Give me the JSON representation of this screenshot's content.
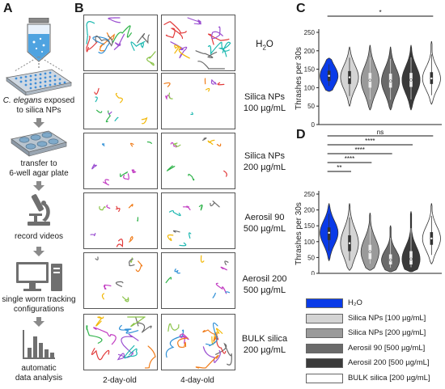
{
  "panels": {
    "a": "A",
    "b": "B",
    "c": "C",
    "d": "D"
  },
  "workflow": {
    "step1_italic": "C. elegans",
    "step1_rest": " exposed\nto silica NPs",
    "step2": "transfer to\n6-well agar plate",
    "step3": "record videos",
    "step4": "single worm tracking\nconfigurations",
    "step5": "automatic\ndata analysis"
  },
  "grid": {
    "col_labels": [
      "2-day-old",
      "4-day-old"
    ],
    "conditions": [
      {
        "line1": "H",
        "sub": "2",
        "line1b": "O",
        "line2": ""
      },
      {
        "line1": "Silica NPs",
        "line2": "100 µg/mL"
      },
      {
        "line1": "Silica NPs",
        "line2": "200 µg/mL"
      },
      {
        "line1": "Aerosil 90",
        "line2": "500 µg/mL"
      },
      {
        "line1": "Aerosil 200",
        "line2": "500 µg/mL"
      },
      {
        "line1": "BULK silica",
        "line2": "200 µg/mL"
      }
    ]
  },
  "chart_data": [
    {
      "type": "violin",
      "panel": "C",
      "ylabel": "Thrashes per 30s",
      "ylim": [
        0,
        250
      ],
      "yticks": [
        0,
        50,
        100,
        150,
        200,
        250
      ],
      "categories": [
        "H2O",
        "Silica NPs [100 µg/mL]",
        "Silica NPs [200 µg/mL]",
        "Aerosil 90 [500 µg/mL]",
        "Aerosil 200 [500 µg/mL]",
        "BULK silica [200 µg/mL]"
      ],
      "medians": [
        132,
        128,
        120,
        118,
        121,
        125
      ],
      "q1": [
        118,
        110,
        100,
        100,
        102,
        110
      ],
      "q3": [
        146,
        145,
        140,
        138,
        140,
        142
      ],
      "min": [
        90,
        50,
        40,
        40,
        40,
        55
      ],
      "max": [
        180,
        210,
        215,
        210,
        215,
        225
      ],
      "significance": [
        {
          "from": 0,
          "to": 5,
          "label": "*"
        }
      ]
    },
    {
      "type": "violin",
      "panel": "D",
      "ylabel": "Thrashes per 30s",
      "ylim": [
        0,
        250
      ],
      "yticks": [
        0,
        50,
        100,
        150,
        200,
        250
      ],
      "categories": [
        "H2O",
        "Silica NPs [100 µg/mL]",
        "Silica NPs [200 µg/mL]",
        "Aerosil 90 [500 µg/mL]",
        "Aerosil 200 [500 µg/mL]",
        "BULK silica [200 µg/mL]"
      ],
      "medians": [
        128,
        95,
        68,
        42,
        45,
        110
      ],
      "q1": [
        105,
        70,
        45,
        28,
        28,
        90
      ],
      "q3": [
        145,
        120,
        90,
        60,
        70,
        130
      ],
      "min": [
        40,
        10,
        10,
        5,
        5,
        30
      ],
      "max": [
        220,
        220,
        190,
        150,
        195,
        220
      ],
      "significance": [
        {
          "from": 0,
          "to": 5,
          "label": "ns"
        },
        {
          "from": 0,
          "to": 4,
          "label": "****"
        },
        {
          "from": 0,
          "to": 3,
          "label": "****"
        },
        {
          "from": 0,
          "to": 2,
          "label": "****"
        },
        {
          "from": 0,
          "to": 1,
          "label": "**"
        }
      ]
    }
  ],
  "legend": [
    {
      "label": "H₂O",
      "color": "#0a3be8"
    },
    {
      "label": "Silica NPs [100 µg/mL]",
      "color": "#d4d4d4"
    },
    {
      "label": "Silica NPs [200 µg/mL]",
      "color": "#9a9a9a"
    },
    {
      "label": "Aerosil 90 [500 µg/mL]",
      "color": "#6a6a6a"
    },
    {
      "label": "Aerosil 200 [500 µg/mL]",
      "color": "#3a3a3a"
    },
    {
      "label": "BULK silica [200 µg/mL]",
      "color": "#ffffff"
    }
  ]
}
